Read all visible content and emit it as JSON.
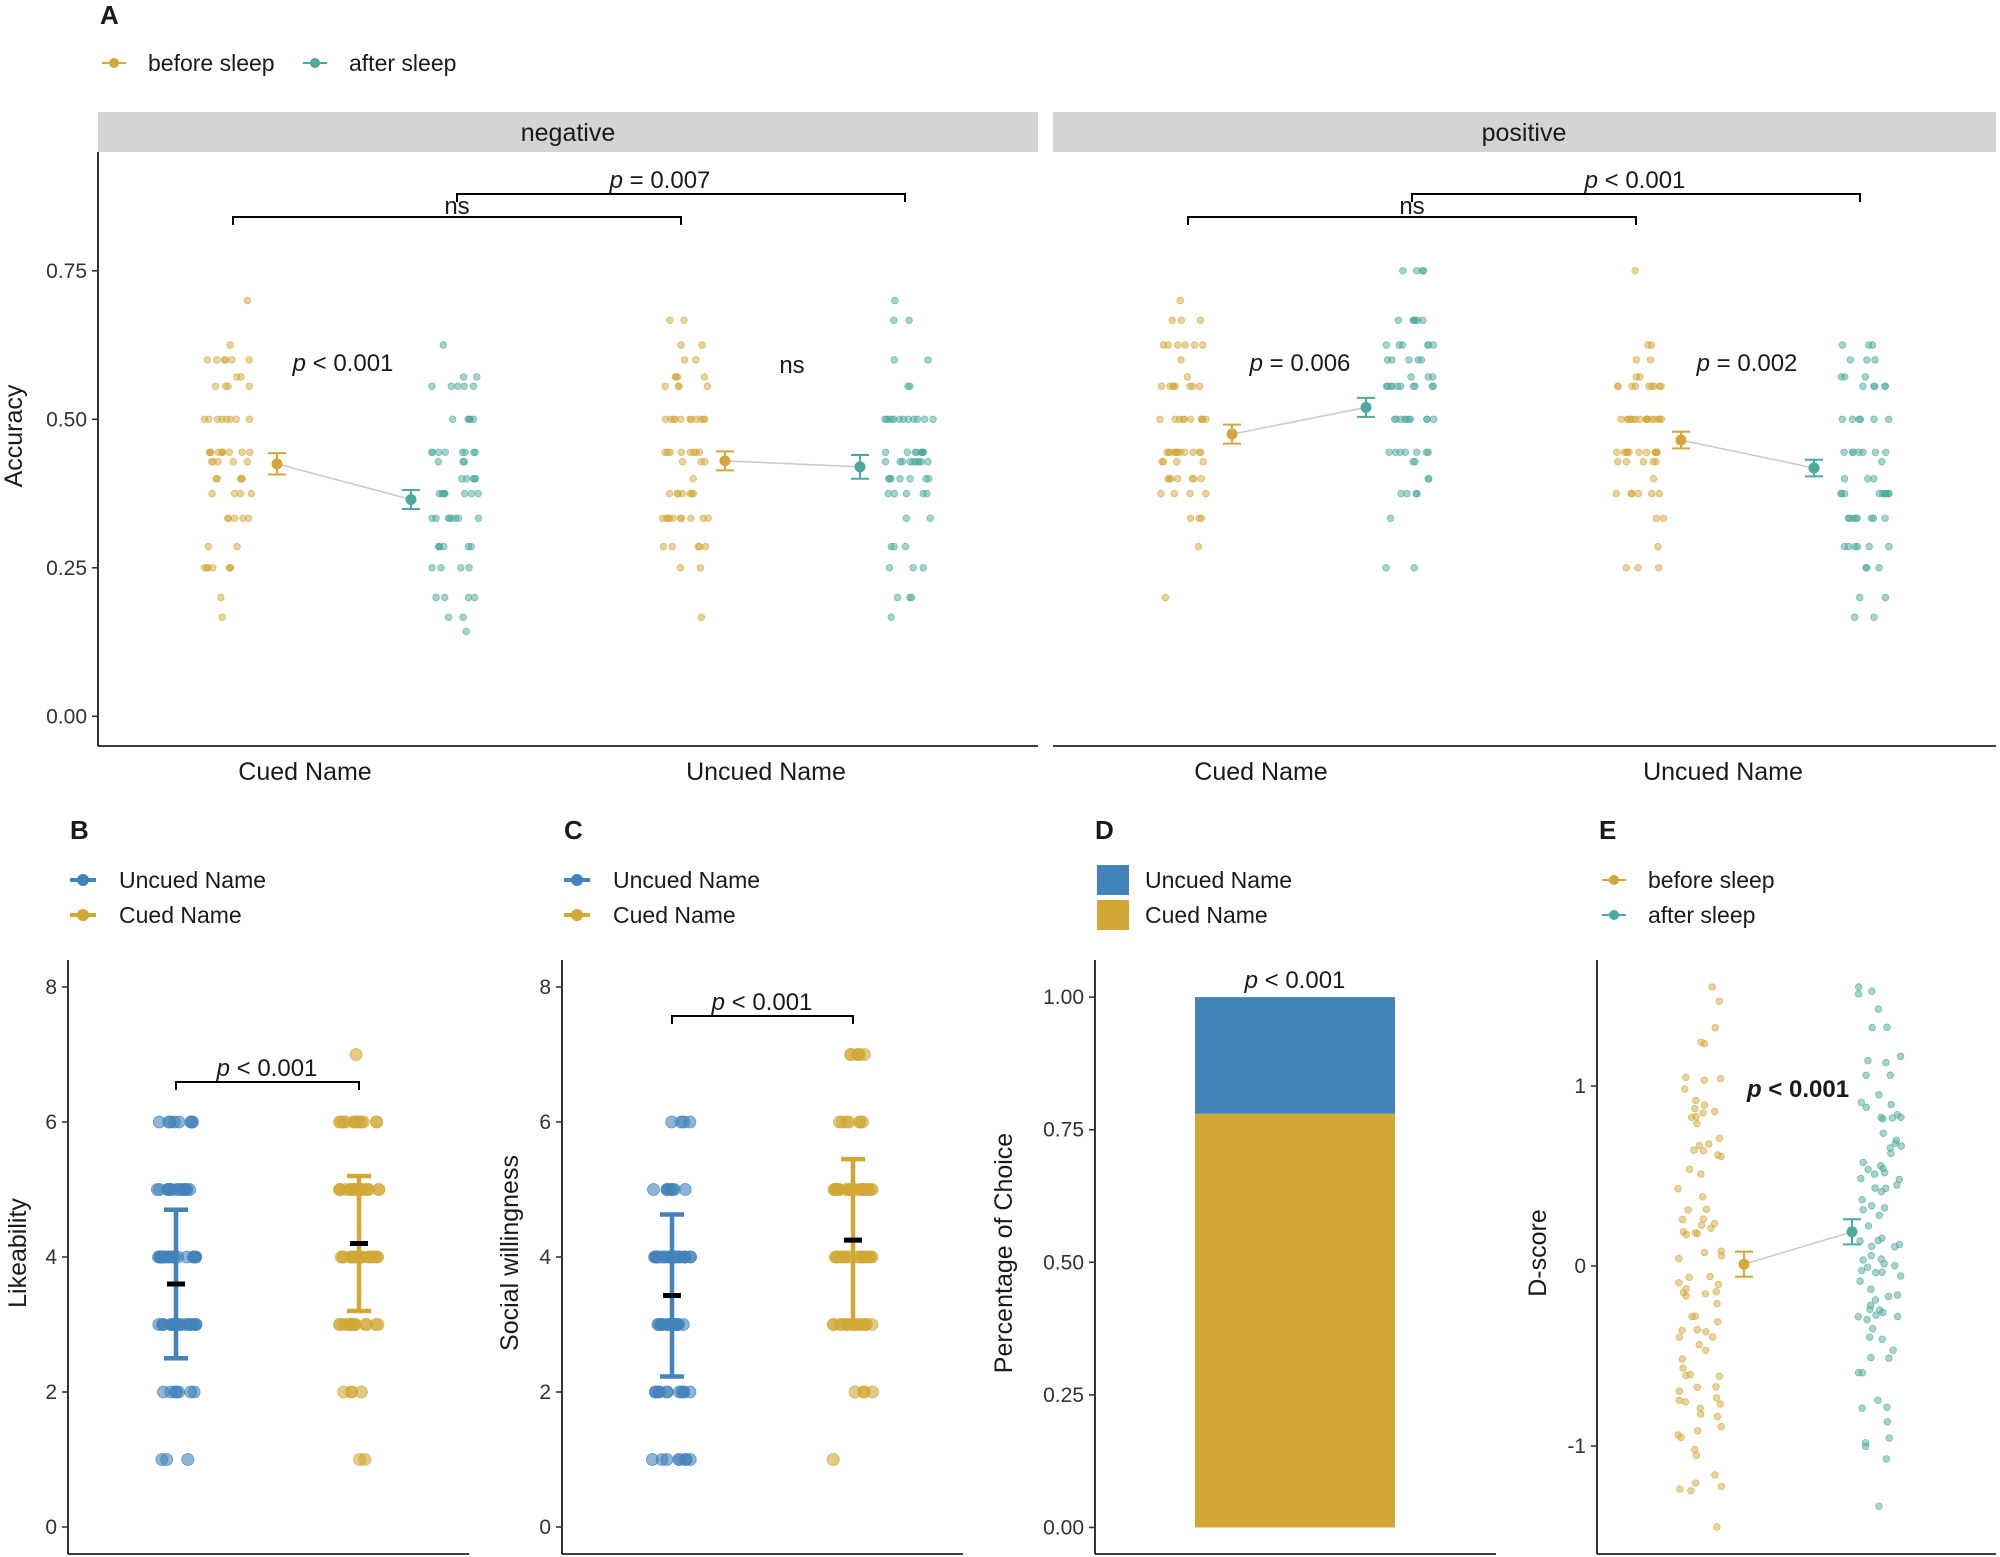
{
  "colors": {
    "before": "#D4A73A",
    "after": "#4DA99C",
    "uncued": "#4283BA",
    "cued": "#D1A836",
    "strip": "#D3D3D3",
    "mean_line": "#000000"
  },
  "chart_data": [
    {
      "id": "A",
      "type": "scatter",
      "panel_label": "A",
      "legend": [
        {
          "name": "before sleep"
        },
        {
          "name": "after sleep"
        }
      ],
      "ylabel": "Accuracy",
      "ylim": [
        -0.05,
        0.95
      ],
      "yticks": [
        "0.00",
        "0.25",
        "0.50",
        "0.75"
      ],
      "facets": [
        {
          "strip": "negative",
          "categories": [
            "Cued Name",
            "Uncued Name"
          ],
          "groups": [
            {
              "category": "Cued Name",
              "before": {
                "mean": 0.425,
                "se": 0.018
              },
              "after": {
                "mean": 0.365,
                "se": 0.016
              },
              "within_label": "< 0.001",
              "within_pvalue": true
            },
            {
              "category": "Uncued Name",
              "before": {
                "mean": 0.43,
                "se": 0.016
              },
              "after": {
                "mean": 0.42,
                "se": 0.02
              },
              "within_label": "ns",
              "within_pvalue": false
            }
          ],
          "brackets": [
            {
              "label": "ns",
              "pvalue": false
            },
            {
              "label": "= 0.007",
              "pvalue": true
            }
          ]
        },
        {
          "strip": "positive",
          "categories": [
            "Cued Name",
            "Uncued Name"
          ],
          "groups": [
            {
              "category": "Cued Name",
              "before": {
                "mean": 0.475,
                "se": 0.016
              },
              "after": {
                "mean": 0.52,
                "se": 0.016
              },
              "within_label": "= 0.006",
              "within_pvalue": true
            },
            {
              "category": "Uncued Name",
              "before": {
                "mean": 0.465,
                "se": 0.014
              },
              "after": {
                "mean": 0.418,
                "se": 0.014
              },
              "within_label": "= 0.002",
              "within_pvalue": true
            }
          ],
          "brackets": [
            {
              "label": "ns",
              "pvalue": false
            },
            {
              "label": "< 0.001",
              "pvalue": true
            }
          ]
        }
      ]
    },
    {
      "id": "B",
      "type": "scatter",
      "panel_label": "B",
      "legend": [
        {
          "name": "Uncued Name"
        },
        {
          "name": "Cued Name"
        }
      ],
      "ylabel": "Likeability",
      "ylim": [
        -0.4,
        8.4
      ],
      "yticks": [
        "0",
        "2",
        "4",
        "6",
        "8"
      ],
      "groups": [
        {
          "name": "Uncued Name",
          "mean": 3.6,
          "sd": 1.1
        },
        {
          "name": "Cued Name",
          "mean": 4.2,
          "sd": 1.0
        }
      ],
      "bracket": "< 0.001"
    },
    {
      "id": "C",
      "type": "scatter",
      "panel_label": "C",
      "legend": [
        {
          "name": "Uncued Name"
        },
        {
          "name": "Cued Name"
        }
      ],
      "ylabel": "Social willingness",
      "ylim": [
        -0.4,
        8.4
      ],
      "yticks": [
        "0",
        "2",
        "4",
        "6",
        "8"
      ],
      "groups": [
        {
          "name": "Uncued Name",
          "mean": 3.43,
          "sd": 1.2
        },
        {
          "name": "Cued Name",
          "mean": 4.25,
          "sd": 1.2
        }
      ],
      "bracket": "< 0.001"
    },
    {
      "id": "D",
      "type": "bar",
      "panel_label": "D",
      "legend": [
        {
          "name": "Uncued Name"
        },
        {
          "name": "Cued Name"
        }
      ],
      "ylabel": "Percentage of Choice",
      "ylim": [
        -0.05,
        1.07
      ],
      "yticks": [
        "0.00",
        "0.25",
        "0.50",
        "0.75",
        "1.00"
      ],
      "series": [
        {
          "name": "Cued Name",
          "values": [
            0.78
          ]
        },
        {
          "name": "Uncued Name",
          "values": [
            0.22
          ]
        }
      ],
      "annotation": "< 0.001"
    },
    {
      "id": "E",
      "type": "scatter",
      "panel_label": "E",
      "legend": [
        {
          "name": "before sleep"
        },
        {
          "name": "after sleep"
        }
      ],
      "ylabel": "D-score",
      "ylim": [
        -1.6,
        1.7
      ],
      "yticks": [
        "-1",
        "0",
        "1"
      ],
      "groups": [
        {
          "name": "before sleep",
          "mean": 0.01,
          "se": 0.07
        },
        {
          "name": "after sleep",
          "mean": 0.19,
          "se": 0.07
        }
      ],
      "annotation": "< 0.001"
    }
  ]
}
